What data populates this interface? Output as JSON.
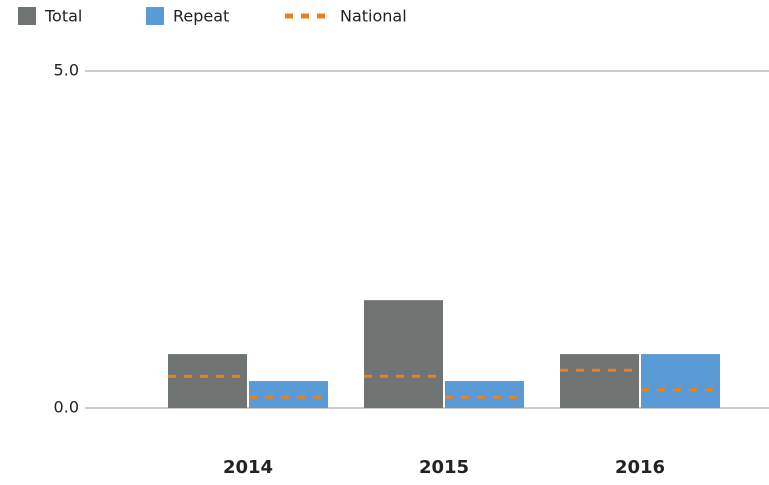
{
  "chart_data": {
    "type": "bar",
    "categories": [
      "2014",
      "2015",
      "2016"
    ],
    "series": [
      {
        "name": "Total",
        "color": "#6f7473",
        "values": [
          0.8,
          1.6,
          0.8
        ],
        "national": [
          0.47,
          0.47,
          0.56
        ]
      },
      {
        "name": "Repeat",
        "color": "#5b9bd5",
        "values": [
          0.4,
          0.4,
          0.8
        ],
        "national": [
          0.16,
          0.16,
          0.27
        ]
      }
    ],
    "national_name": "National",
    "national_color": "#e8821e",
    "ylim": [
      0,
      5
    ],
    "yticks": [
      {
        "value": 0,
        "label": "0.0"
      },
      {
        "value": 5,
        "label": "5.0"
      }
    ],
    "grid": true
  }
}
